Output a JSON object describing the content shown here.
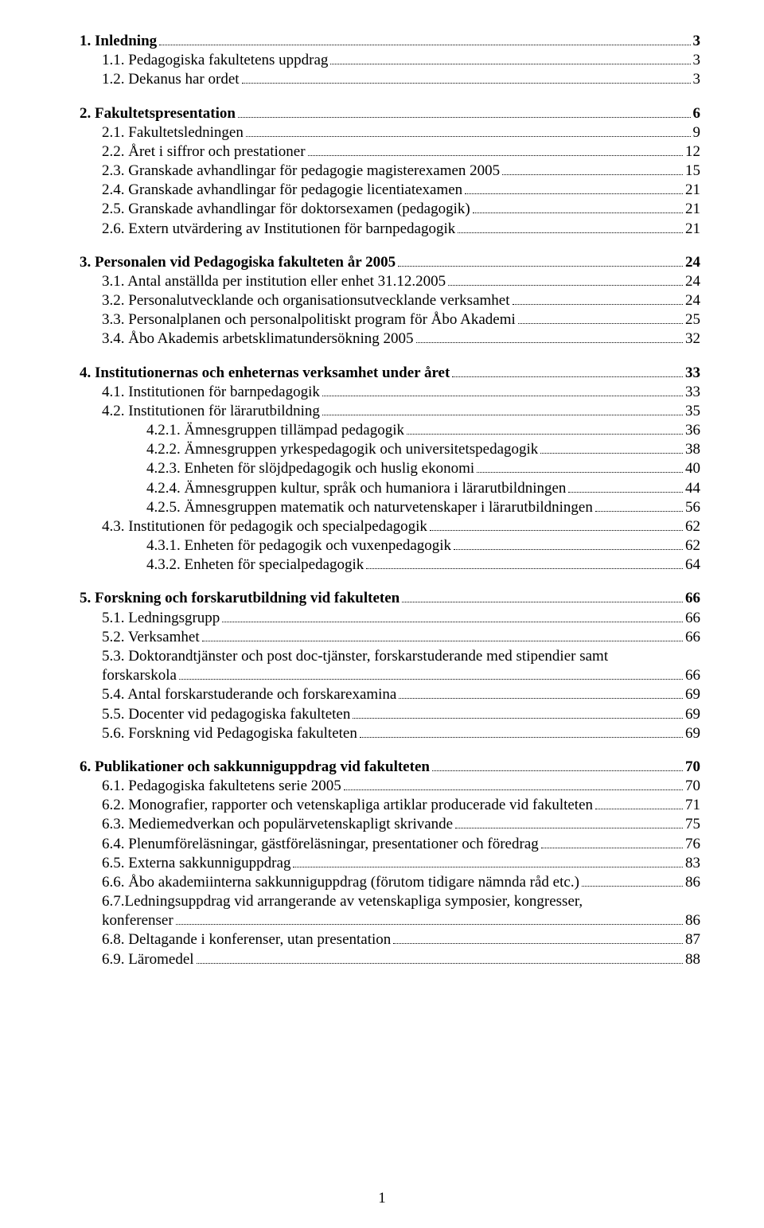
{
  "page_number": "1",
  "toc": [
    {
      "bold": true,
      "indent": 0,
      "label": "1. Inledning",
      "page": "3"
    },
    {
      "bold": false,
      "indent": 1,
      "label": "1.1. Pedagogiska fakultetens uppdrag",
      "page": "3"
    },
    {
      "bold": false,
      "indent": 1,
      "label": "1.2. Dekanus har ordet",
      "page": "3"
    },
    {
      "gap": true
    },
    {
      "bold": true,
      "indent": 0,
      "label": "2. Fakultetspresentation",
      "page": "6"
    },
    {
      "bold": false,
      "indent": 1,
      "label": "2.1. Fakultetsledningen",
      "page": "9"
    },
    {
      "bold": false,
      "indent": 1,
      "label": "2.2. Året i siffror och prestationer",
      "page": "12"
    },
    {
      "bold": false,
      "indent": 1,
      "label": "2.3. Granskade avhandlingar för pedagogie magisterexamen 2005",
      "page": "15"
    },
    {
      "bold": false,
      "indent": 1,
      "label": "2.4. Granskade avhandlingar för pedagogie licentiatexamen",
      "page": "21"
    },
    {
      "bold": false,
      "indent": 1,
      "label": "2.5. Granskade avhandlingar för doktorsexamen (pedagogik)",
      "page": "21"
    },
    {
      "bold": false,
      "indent": 1,
      "label": "2.6. Extern utvärdering av Institutionen för barnpedagogik",
      "page": "21"
    },
    {
      "gap": true
    },
    {
      "bold": true,
      "indent": 0,
      "label": "3. Personalen vid Pedagogiska fakulteten år 2005",
      "page": "24"
    },
    {
      "bold": false,
      "indent": 1,
      "label": "3.1. Antal anställda per institution eller enhet 31.12.2005",
      "page": "24"
    },
    {
      "bold": false,
      "indent": 1,
      "label": "3.2. Personalutvecklande och organisationsutvecklande verksamhet",
      "page": "24"
    },
    {
      "bold": false,
      "indent": 1,
      "label": "3.3. Personalplanen och personalpolitiskt program för Åbo Akademi",
      "page": "25"
    },
    {
      "bold": false,
      "indent": 1,
      "label": "3.4. Åbo Akademis arbetsklimatundersökning 2005",
      "page": "32"
    },
    {
      "gap": true
    },
    {
      "bold": true,
      "indent": 0,
      "label": "4. Institutionernas och enheternas verksamhet under året",
      "page": "33"
    },
    {
      "bold": false,
      "indent": 1,
      "label": "4.1. Institutionen för barnpedagogik",
      "page": "33"
    },
    {
      "bold": false,
      "indent": 1,
      "label": "4.2. Institutionen för lärarutbildning",
      "page": "35"
    },
    {
      "bold": false,
      "indent": 2,
      "label": "4.2.1. Ämnesgruppen tillämpad pedagogik",
      "page": "36"
    },
    {
      "bold": false,
      "indent": 2,
      "label": "4.2.2. Ämnesgruppen yrkespedagogik och universitetspedagogik",
      "page": "38"
    },
    {
      "bold": false,
      "indent": 2,
      "label": "4.2.3. Enheten för slöjdpedagogik och huslig ekonomi",
      "page": "40"
    },
    {
      "bold": false,
      "indent": 2,
      "label": "4.2.4. Ämnesgruppen kultur, språk och humaniora i lärarutbildningen",
      "page": "44"
    },
    {
      "bold": false,
      "indent": 2,
      "label": "4.2.5. Ämnesgruppen matematik och naturvetenskaper i lärarutbildningen",
      "page": "56"
    },
    {
      "bold": false,
      "indent": 1,
      "label": "4.3. Institutionen för pedagogik och specialpedagogik",
      "page": "62"
    },
    {
      "bold": false,
      "indent": 2,
      "label": "4.3.1. Enheten för pedagogik och vuxenpedagogik",
      "page": "62"
    },
    {
      "bold": false,
      "indent": 2,
      "label": "4.3.2. Enheten för specialpedagogik",
      "page": "64"
    },
    {
      "gap": true
    },
    {
      "bold": true,
      "indent": 0,
      "label": "5. Forskning och forskarutbildning vid fakulteten",
      "page": "66"
    },
    {
      "bold": false,
      "indent": 1,
      "label": "5.1. Ledningsgrupp",
      "page": "66"
    },
    {
      "bold": false,
      "indent": 1,
      "label": "5.2. Verksamhet",
      "page": "66"
    },
    {
      "bold": false,
      "indent": 1,
      "label": "5.3. Doktorandtjänster och post doc-tjänster, forskarstuderande med stipendier samt",
      "page": "",
      "nopage": true
    },
    {
      "bold": false,
      "indent": 1,
      "label": "forskarskola",
      "page": "66"
    },
    {
      "bold": false,
      "indent": 1,
      "label": "5.4. Antal forskarstuderande och forskarexamina",
      "page": "69"
    },
    {
      "bold": false,
      "indent": 1,
      "label": "5.5. Docenter vid pedagogiska fakulteten",
      "page": "69"
    },
    {
      "bold": false,
      "indent": 1,
      "label": "5.6. Forskning vid Pedagogiska fakulteten",
      "page": "69"
    },
    {
      "gap": true
    },
    {
      "bold": true,
      "indent": 0,
      "label": "6. Publikationer och sakkunniguppdrag vid fakulteten",
      "page": "70"
    },
    {
      "bold": false,
      "indent": 1,
      "label": "6.1. Pedagogiska fakultetens serie 2005",
      "page": "70"
    },
    {
      "bold": false,
      "indent": 1,
      "label": "6.2. Monografier, rapporter och vetenskapliga artiklar producerade vid fakulteten",
      "page": "71"
    },
    {
      "bold": false,
      "indent": 1,
      "label": "6.3. Mediemedverkan och populärvetenskapligt skrivande",
      "page": "75"
    },
    {
      "bold": false,
      "indent": 1,
      "label": "6.4. Plenumföreläsningar, gästföreläsningar, presentationer och föredrag",
      "page": "76"
    },
    {
      "bold": false,
      "indent": 1,
      "label": "6.5. Externa sakkunniguppdrag",
      "page": "83"
    },
    {
      "bold": false,
      "indent": 1,
      "label": "6.6. Åbo akademiinterna sakkunniguppdrag (förutom tidigare nämnda råd etc.)",
      "page": "86"
    },
    {
      "bold": false,
      "indent": 1,
      "label": "6.7.Ledningsuppdrag vid arrangerande av vetenskapliga symposier, kongresser,",
      "page": "",
      "nopage": true
    },
    {
      "bold": false,
      "indent": 1,
      "label": "konferenser",
      "page": "86"
    },
    {
      "bold": false,
      "indent": 1,
      "label": "6.8. Deltagande i konferenser, utan presentation",
      "page": "87"
    },
    {
      "bold": false,
      "indent": 1,
      "label": "6.9. Läromedel",
      "page": "88"
    }
  ]
}
